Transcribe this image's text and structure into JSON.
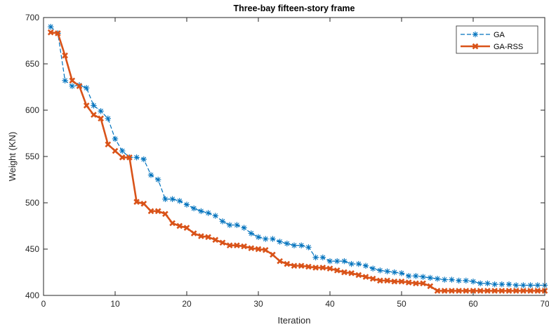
{
  "chart_data": {
    "type": "line",
    "title": "Three-bay fifteen-story frame",
    "xlabel": "Iteration",
    "ylabel": "Weight (KN)",
    "xlim": [
      0,
      70
    ],
    "ylim": [
      400,
      700
    ],
    "xticks": [
      "0",
      "10",
      "20",
      "30",
      "40",
      "50",
      "60",
      "70"
    ],
    "yticks": [
      "400",
      "450",
      "500",
      "550",
      "600",
      "650",
      "700"
    ],
    "grid": false,
    "legend_position": "top-right",
    "series": [
      {
        "name": "GA",
        "color": "#0072BD",
        "line_style": "dashed",
        "marker": "asterisk",
        "x": [
          1,
          2,
          3,
          4,
          5,
          6,
          7,
          8,
          9,
          10,
          11,
          12,
          13,
          14,
          15,
          16,
          17,
          18,
          19,
          20,
          21,
          22,
          23,
          24,
          25,
          26,
          27,
          28,
          29,
          30,
          31,
          32,
          33,
          34,
          35,
          36,
          37,
          38,
          39,
          40,
          41,
          42,
          43,
          44,
          45,
          46,
          47,
          48,
          49,
          50,
          51,
          52,
          53,
          54,
          55,
          56,
          57,
          58,
          59,
          60,
          61,
          62,
          63,
          64,
          65,
          66,
          67,
          68,
          69,
          70
        ],
        "values": [
          690,
          683,
          632,
          626,
          627,
          624,
          605,
          599,
          591,
          569,
          556,
          549,
          549,
          547,
          530,
          525,
          504,
          504,
          502,
          498,
          494,
          491,
          489,
          486,
          480,
          476,
          476,
          473,
          467,
          463,
          461,
          461,
          458,
          456,
          454,
          454,
          452,
          441,
          441,
          437,
          437,
          437,
          434,
          434,
          432,
          429,
          427,
          426,
          425,
          424,
          421,
          421,
          420,
          419,
          418,
          417,
          417,
          416,
          416,
          415,
          413,
          413,
          412,
          412,
          412,
          411,
          411,
          411,
          411,
          411
        ]
      },
      {
        "name": "GA-RSS",
        "color": "#D95319",
        "line_style": "solid",
        "marker": "x-filled",
        "x": [
          1,
          2,
          3,
          4,
          5,
          6,
          7,
          8,
          9,
          10,
          11,
          12,
          13,
          14,
          15,
          16,
          17,
          18,
          19,
          20,
          21,
          22,
          23,
          24,
          25,
          26,
          27,
          28,
          29,
          30,
          31,
          32,
          33,
          34,
          35,
          36,
          37,
          38,
          39,
          40,
          41,
          42,
          43,
          44,
          45,
          46,
          47,
          48,
          49,
          50,
          51,
          52,
          53,
          54,
          55,
          56,
          57,
          58,
          59,
          60,
          61,
          62,
          63,
          64,
          65,
          66,
          67,
          68,
          69,
          70
        ],
        "values": [
          684,
          683,
          659,
          632,
          626,
          605,
          595,
          591,
          563,
          556,
          549,
          549,
          501,
          499,
          491,
          491,
          488,
          478,
          475,
          473,
          467,
          464,
          463,
          460,
          457,
          454,
          454,
          453,
          451,
          450,
          449,
          444,
          437,
          434,
          432,
          432,
          431,
          430,
          430,
          429,
          427,
          425,
          424,
          422,
          420,
          418,
          416,
          416,
          415,
          415,
          414,
          413,
          413,
          410,
          405,
          405,
          405,
          405,
          405,
          405,
          405,
          405,
          405,
          405,
          405,
          405,
          405,
          405,
          405,
          405
        ]
      }
    ]
  }
}
